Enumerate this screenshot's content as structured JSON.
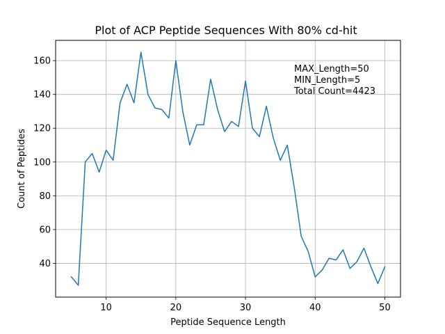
{
  "chart_data": {
    "type": "line",
    "title": "Plot of ACP Peptide Sequences With 80% cd-hit",
    "xlabel": "Peptide Sequence Length",
    "ylabel": "Count of Peptides",
    "xlim": [
      2.75,
      52.25
    ],
    "ylim": [
      20,
      172
    ],
    "xticks": [
      10,
      20,
      30,
      40,
      50
    ],
    "yticks": [
      40,
      60,
      80,
      100,
      120,
      140,
      160
    ],
    "grid": true,
    "series": [
      {
        "color": "#1f77b4",
        "x": [
          5,
          6,
          7,
          8,
          9,
          10,
          11,
          12,
          13,
          14,
          15,
          16,
          17,
          18,
          19,
          20,
          21,
          22,
          23,
          24,
          25,
          26,
          27,
          28,
          29,
          30,
          31,
          32,
          33,
          34,
          35,
          36,
          37,
          38,
          39,
          40,
          41,
          42,
          43,
          44,
          45,
          46,
          47,
          48,
          49,
          50
        ],
        "y": [
          32,
          27,
          100,
          105,
          94,
          107,
          101,
          135,
          146,
          135,
          165,
          140,
          132,
          131,
          126,
          160,
          130,
          110,
          122,
          122,
          149,
          131,
          118,
          124,
          121,
          148,
          120,
          115,
          133,
          114,
          101,
          110,
          85,
          56,
          47,
          32,
          36,
          43,
          42,
          48,
          37,
          41,
          49,
          38,
          28,
          38
        ]
      }
    ],
    "annotations": [
      "MAX_Length=50",
      "MIN_Length=5",
      "Total Count=4423"
    ]
  }
}
